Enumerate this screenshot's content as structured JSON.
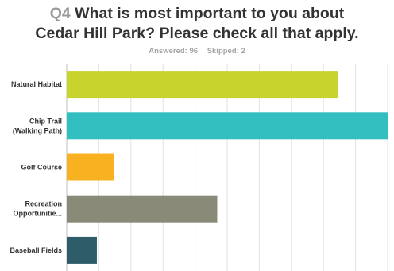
{
  "question": {
    "number": "Q4",
    "line1": "What is most important to you about",
    "line2": "Cedar Hill Park? Please check all that apply."
  },
  "stats": {
    "answered": "Answered: 96",
    "skipped": "Skipped: 2"
  },
  "chart_data": {
    "type": "bar",
    "orientation": "horizontal",
    "categories": [
      [
        "Natural Habitat"
      ],
      [
        "Chip Trail",
        "(Walking Path)"
      ],
      [
        "Golf Course"
      ],
      [
        "Recreation",
        "Opportunitie..."
      ],
      [
        "Baseball Fields"
      ]
    ],
    "values": [
      84.4,
      100,
      14.6,
      46.9,
      9.4
    ],
    "colors": [
      "#c9d32e",
      "#33bfbf",
      "#f8b121",
      "#8a8a79",
      "#2e5c68"
    ],
    "xlim": [
      0,
      100
    ],
    "grid": true
  }
}
